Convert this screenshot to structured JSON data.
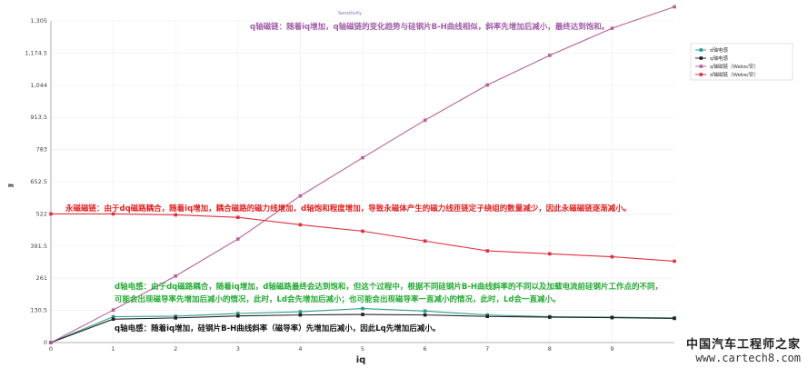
{
  "chart_data": {
    "type": "line",
    "title": "Sensitivity",
    "xlabel": "iq",
    "ylabel": "m",
    "xlim": [
      0,
      10
    ],
    "ylim": [
      0,
      1305
    ],
    "x_ticks": [
      "0",
      "1",
      "2",
      "3",
      "4",
      "5",
      "6",
      "7",
      "8",
      "9"
    ],
    "y_ticks": [
      "0",
      "130.5",
      "261",
      "391.5",
      "522",
      "652.5",
      "783",
      "913.5",
      "1,044",
      "1,174.5",
      "1,305"
    ],
    "x": [
      0,
      1,
      2,
      3,
      4,
      5,
      6,
      7,
      8,
      9,
      10
    ],
    "series": [
      {
        "name": "d轴电感",
        "color": "#2a9d8f",
        "values": [
          0,
          105,
          107,
          118,
          125,
          138,
          128,
          112,
          105,
          103,
          100
        ]
      },
      {
        "name": "q轴电感",
        "color": "#222222",
        "values": [
          0,
          95,
          100,
          108,
          112,
          114,
          112,
          106,
          103,
          101,
          98
        ]
      },
      {
        "name": "q轴磁链（Webe/安）",
        "color": "#b8609a",
        "values": [
          0,
          132,
          270,
          420,
          595,
          750,
          902,
          1045,
          1165,
          1275,
          1362
        ]
      },
      {
        "name": "d轴磁链（Webe/安）",
        "color": "#e03040",
        "values": [
          522,
          522,
          518,
          508,
          478,
          452,
          412,
          372,
          360,
          348,
          330
        ]
      }
    ],
    "legend_position": "top-right",
    "annotations": {
      "q_flux": "q轴磁链：随着iq增加，q轴磁链的变化趋势与硅钢片B-H曲线相似，斜率先增加后减小，最终达到饱和。",
      "pm_flux": "永磁磁链：由于dq磁路耦合，随着iq增加，耦合磁路的磁力线增加，d轴饱和程度增加，导致永磁体产生的磁力线匝链定子绕组的数量减少，因此永磁磁链逐渐减小。",
      "d_ind_1": "d轴电感：由于dq磁路耦合，随着iq增加，d轴磁路最终会达到饱和，但这个过程中，根据不同硅钢片B-H曲线斜率的不同以及加载电流前硅钢片工作点的不同，",
      "d_ind_2": "可能会出现磁导率先增加后减小的情况，此时，Ld会先增加后减小；也可能会出现磁导率一直减小的情况，此时，Ld会一直减小。",
      "q_ind": "q轴电感：随着iq增加，硅钢片B-H曲线斜率（磁导率）先增加后减小，因此Lq先增加后减小。"
    },
    "annotation_colors": {
      "q_flux": "#a05ca8",
      "pm_flux": "#e02020",
      "d_ind": "#22aa33",
      "q_ind": "#111111"
    }
  },
  "watermark": {
    "name": "中国汽车工程师之家",
    "url": "www.cartech8.com"
  }
}
